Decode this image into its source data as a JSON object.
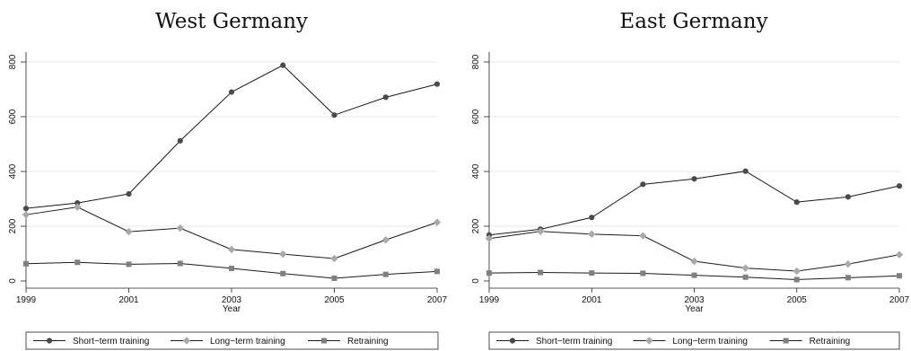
{
  "chart_data": [
    {
      "type": "line",
      "title": "West Germany",
      "xlabel": "Year",
      "ylabel": "",
      "x": [
        1999,
        2000,
        2001,
        2002,
        2003,
        2004,
        2005,
        2006,
        2007
      ],
      "x_ticks": [
        "1999",
        "2001",
        "2003",
        "2005",
        "2007"
      ],
      "y_ticks": [
        "0",
        "200",
        "400",
        "600",
        "800"
      ],
      "xlim": [
        1999,
        2007
      ],
      "ylim": [
        0,
        800
      ],
      "grid": true,
      "series": [
        {
          "name": "Short−term training",
          "values": [
            265,
            285,
            318,
            512,
            690,
            788,
            606,
            671,
            719
          ],
          "color": "#4a4a4a",
          "marker": "circle"
        },
        {
          "name": "Long−term training",
          "values": [
            242,
            270,
            180,
            193,
            115,
            98,
            82,
            150,
            214
          ],
          "color": "#a9a9a9",
          "marker": "diamond"
        },
        {
          "name": "Retraining",
          "values": [
            63,
            68,
            61,
            64,
            46,
            27,
            10,
            24,
            35
          ],
          "color": "#7f7f7f",
          "marker": "square"
        }
      ],
      "legend": [
        "Short−term training",
        "Long−term training",
        "Retraining"
      ],
      "legend_position": "bottom"
    },
    {
      "type": "line",
      "title": "East Germany",
      "xlabel": "Year",
      "ylabel": "",
      "x": [
        1999,
        2000,
        2001,
        2002,
        2003,
        2004,
        2005,
        2006,
        2007
      ],
      "x_ticks": [
        "1999",
        "2001",
        "2003",
        "2005",
        "2007"
      ],
      "y_ticks": [
        "0",
        "200",
        "400",
        "600",
        "800"
      ],
      "xlim": [
        1999,
        2007
      ],
      "ylim": [
        0,
        800
      ],
      "grid": true,
      "series": [
        {
          "name": "Short−term training",
          "values": [
            168,
            189,
            232,
            353,
            373,
            401,
            288,
            307,
            347
          ],
          "color": "#4a4a4a",
          "marker": "circle"
        },
        {
          "name": "Long−term training",
          "values": [
            155,
            181,
            171,
            165,
            72,
            47,
            36,
            62,
            96
          ],
          "color": "#a9a9a9",
          "marker": "diamond"
        },
        {
          "name": "Retraining",
          "values": [
            29,
            31,
            29,
            28,
            21,
            14,
            5,
            12,
            19
          ],
          "color": "#7f7f7f",
          "marker": "square"
        }
      ],
      "legend": [
        "Short−term training",
        "Long−term training",
        "Retraining"
      ],
      "legend_position": "bottom"
    }
  ]
}
